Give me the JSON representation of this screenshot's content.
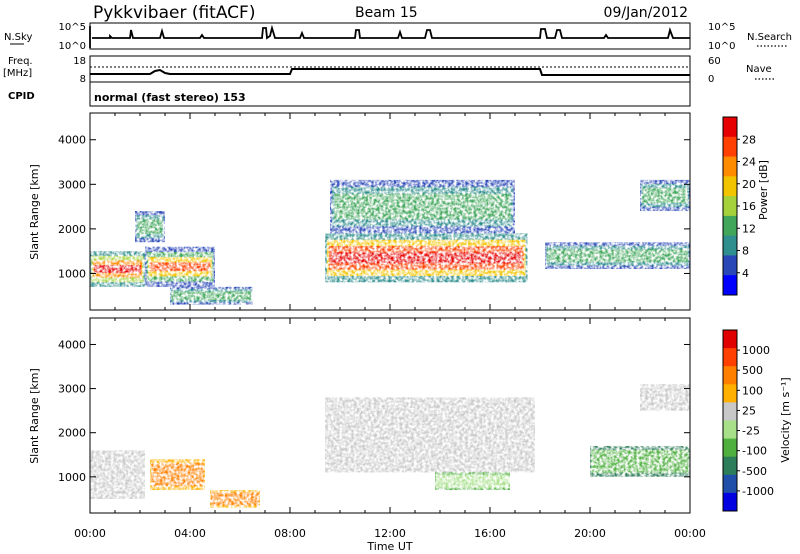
{
  "header": {
    "station": "Pykkvibaer (fitACF)",
    "beam": "Beam 15",
    "date": "09/Jan/2012"
  },
  "noise_panel": {
    "left_label": "N.Sky",
    "left_ticks": [
      "10^5",
      "10^0"
    ],
    "right_label": "N.Search",
    "right_ticks": [
      "10^5",
      "10^0"
    ]
  },
  "freq_panel": {
    "left_label_1": "Freq.",
    "left_label_2": "[MHz]",
    "left_ticks": [
      "18",
      "8"
    ],
    "right_label": "Nave",
    "right_ticks": [
      "60",
      "0"
    ]
  },
  "cpid": {
    "label": "CPID",
    "value": "normal (fast stereo) 153"
  },
  "x_axis": {
    "label": "Time UT",
    "ticks": [
      "00:00",
      "04:00",
      "08:00",
      "12:00",
      "16:00",
      "20:00",
      "00:00"
    ]
  },
  "chart_data": [
    {
      "type": "heatmap",
      "title": "",
      "xlabel": "Time UT",
      "ylabel": "Slant Range [km]",
      "xlim": [
        0,
        24
      ],
      "ylim": [
        180,
        4600
      ],
      "yticks": [
        "1000",
        "2000",
        "3000",
        "4000"
      ],
      "colorbar": {
        "label": "Power [dB]",
        "ticks": [
          "28",
          "24",
          "20",
          "16",
          "12",
          "8",
          "4"
        ],
        "range": [
          0,
          30
        ],
        "colors": [
          "#0000ff",
          "#2a47b8",
          "#2f8e8e",
          "#3fa65a",
          "#a5d23a",
          "#f2c400",
          "#ff8c00",
          "#ff4000",
          "#e60000"
        ]
      },
      "regions": [
        {
          "x": [
            0,
            2.2
          ],
          "y": [
            700,
            1500
          ],
          "level": "high"
        },
        {
          "x": [
            1.8,
            3.0
          ],
          "y": [
            1700,
            2400
          ],
          "level": "mid"
        },
        {
          "x": [
            2.2,
            5.0
          ],
          "y": [
            700,
            1600
          ],
          "level": "mid-high"
        },
        {
          "x": [
            3.2,
            6.5
          ],
          "y": [
            300,
            700
          ],
          "level": "mid"
        },
        {
          "x": [
            9.4,
            17.5
          ],
          "y": [
            800,
            1900
          ],
          "level": "very high"
        },
        {
          "x": [
            9.6,
            17.0
          ],
          "y": [
            1900,
            3100
          ],
          "level": "mid"
        },
        {
          "x": [
            18.2,
            24
          ],
          "y": [
            1100,
            1700
          ],
          "level": "mid"
        },
        {
          "x": [
            22.0,
            24
          ],
          "y": [
            2400,
            3100
          ],
          "level": "mid"
        }
      ]
    },
    {
      "type": "heatmap",
      "title": "",
      "xlabel": "Time UT",
      "ylabel": "Slant Range [km]",
      "xlim": [
        0,
        24
      ],
      "ylim": [
        180,
        4600
      ],
      "yticks": [
        "1000",
        "2000",
        "3000",
        "4000"
      ],
      "colorbar": {
        "label": "Velocity [m s^-1]",
        "ticks": [
          "1000",
          "500",
          "100",
          "25",
          "-25",
          "-100",
          "-500",
          "-1000"
        ],
        "colors": [
          "#0000e0",
          "#1f4fa8",
          "#2e7d5a",
          "#4fb040",
          "#a8e08a",
          "#c8c8c8",
          "#ffb000",
          "#ff8000",
          "#ff4000",
          "#e00000"
        ]
      },
      "regions": [
        {
          "x": [
            0,
            2.2
          ],
          "y": [
            500,
            1600
          ],
          "level": "near zero"
        },
        {
          "x": [
            2.4,
            4.6
          ],
          "y": [
            700,
            1400
          ],
          "level": "-100 to -500"
        },
        {
          "x": [
            4.8,
            6.8
          ],
          "y": [
            300,
            700
          ],
          "level": "-100 to -500"
        },
        {
          "x": [
            9.4,
            17.8
          ],
          "y": [
            1100,
            2800
          ],
          "level": "near zero"
        },
        {
          "x": [
            13.8,
            16.8
          ],
          "y": [
            700,
            1100
          ],
          "level": "100"
        },
        {
          "x": [
            20.0,
            24
          ],
          "y": [
            1000,
            1700
          ],
          "level": "100 to 500"
        },
        {
          "x": [
            22.0,
            24
          ],
          "y": [
            2500,
            3100
          ],
          "level": "near zero"
        }
      ]
    }
  ]
}
